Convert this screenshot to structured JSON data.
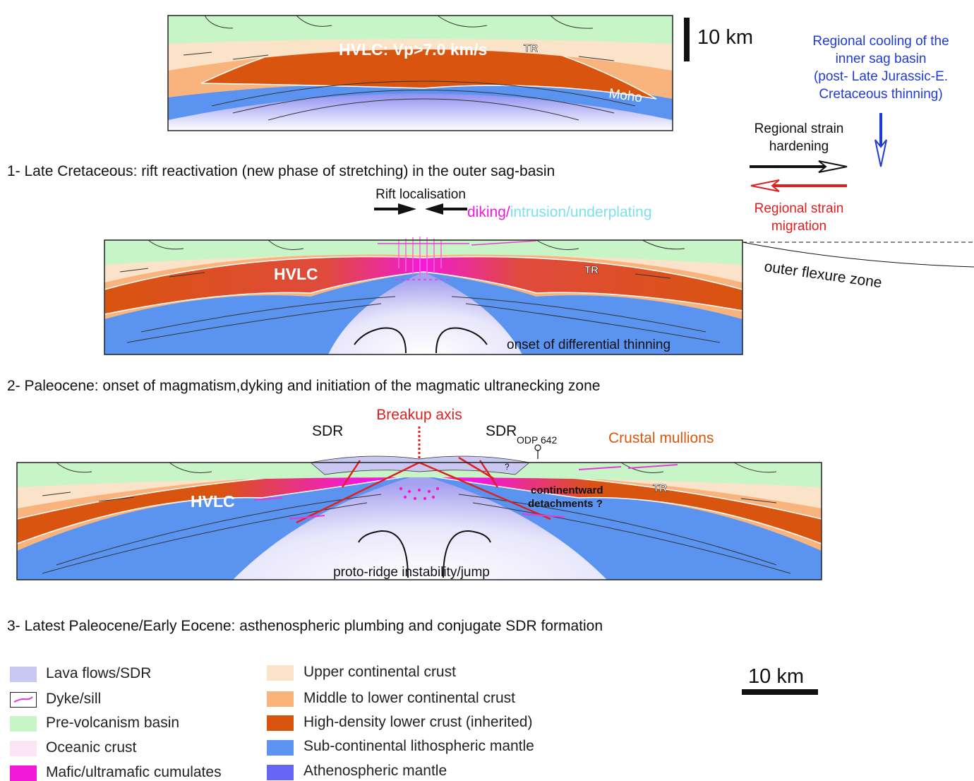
{
  "panel0": {
    "hvlc_label": "HVLC: Vp>7.0 km/s",
    "tr_label": "TR",
    "moho_label": "Moho"
  },
  "scale_top": {
    "label": "10 km"
  },
  "right_notes": {
    "cooling_line1": "Regional cooling of the",
    "cooling_line2": "inner sag basin",
    "cooling_line3": "(post- Late Jurassic-E.",
    "cooling_line4": "Cretaceous thinning)",
    "hardening_line1": "Regional strain",
    "hardening_line2": "hardening",
    "migration_line1": "Regional strain",
    "migration_line2": "migration",
    "outer_flexure": "outer flexure zone"
  },
  "stage1": {
    "caption": "1- Late Cretaceous: rift reactivation (new phase of stretching) in the outer sag-basin",
    "rift_localisation": "Rift localisation",
    "diking": "diking/",
    "intrusion": "intrusion/underplating",
    "hvlc_label": "HVLC",
    "tr_label": "TR",
    "differential": "onset of differential thinning"
  },
  "stage2": {
    "caption": "2- Paleocene: onset of magmatism,dyking and initiation of the magmatic ultranecking zone",
    "breakup_axis": "Breakup axis",
    "sdr_left": "SDR",
    "sdr_right": "SDR",
    "odp": "ODP 642",
    "crustal_mullions": "Crustal mullions",
    "hvlc_label": "HVLC",
    "tr_label": "TR",
    "detach_line1": "continentward",
    "detach_line2": "detachments ?",
    "question": "?",
    "proto_ridge": "proto-ridge instability/jump"
  },
  "stage3": {
    "caption": "3- Latest Paleocene/Early Eocene: asthenospheric plumbing and conjugate SDR formation"
  },
  "legend": {
    "left": [
      {
        "label": "Lava flows/SDR",
        "color": "#c9c8f2",
        "icon": "swatch"
      },
      {
        "label": "Dyke/sill",
        "color": "#e83ad8",
        "icon": "dyke-line"
      },
      {
        "label": "Pre-volcanism basin",
        "color": "#c8f5c8",
        "icon": "swatch"
      },
      {
        "label": "Oceanic crust",
        "color": "#fbe4f6",
        "icon": "swatch"
      },
      {
        "label": "Mafic/ultramafic cumulates",
        "color": "#f21ad6",
        "icon": "swatch"
      }
    ],
    "right": [
      {
        "label": "Upper continental crust",
        "color": "#fbe3c9",
        "icon": "swatch"
      },
      {
        "label": "Middle to lower continental crust",
        "color": "#f9b47d",
        "icon": "swatch"
      },
      {
        "label": "High-density lower crust (inherited)",
        "color": "#d9540e",
        "icon": "swatch"
      },
      {
        "label": "Sub-continental lithospheric mantle",
        "color": "#5b94f0",
        "icon": "swatch"
      },
      {
        "label": "Athenospheric mantle",
        "color": "#6464f5",
        "icon": "swatch"
      }
    ]
  },
  "scale_bottom": {
    "label": "10 km"
  },
  "colors": {
    "upper_crust": "#fbe3c9",
    "middle_crust": "#f9b47d",
    "hvlc": "#d9540e",
    "mantle": "#5b94f0",
    "basin": "#c8f5c8",
    "cumulates": "#f21ad6",
    "cooling_blue": "#1f3bd6",
    "migration_red": "#e02020",
    "intrusion_cyan": "#7ee0ee",
    "mullions_orange": "#d9560e"
  }
}
